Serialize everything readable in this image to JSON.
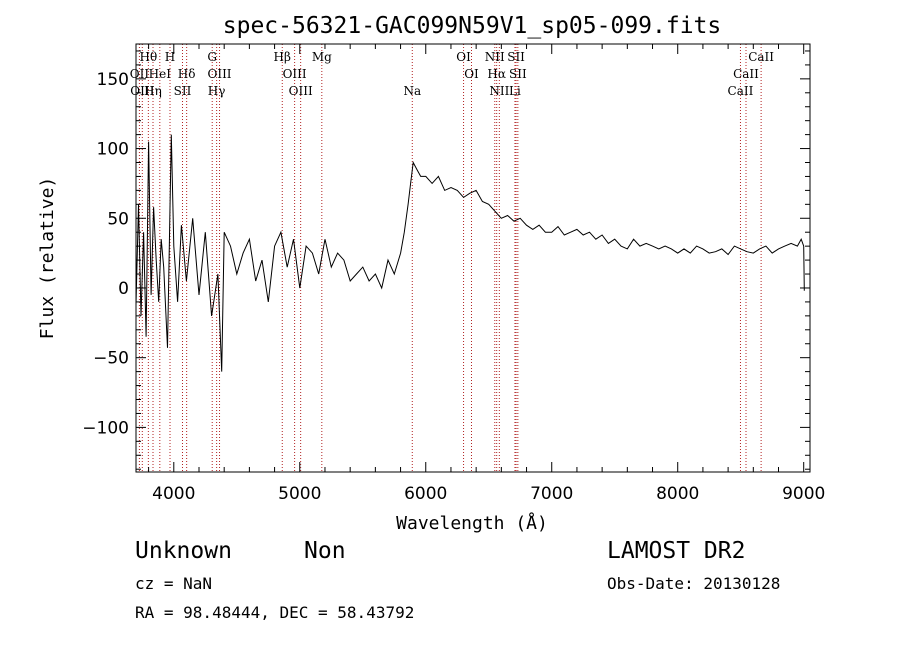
{
  "chart_data": {
    "type": "line",
    "title": "spec-56321-GAC099N59V1_sp05-099.fits",
    "xlabel": "Wavelength (Å)",
    "ylabel": "Flux (relative)",
    "xlim": [
      3700,
      9050
    ],
    "ylim": [
      -132,
      175
    ],
    "xticks": [
      4000,
      5000,
      6000,
      7000,
      8000,
      9000
    ],
    "yticks": [
      -100,
      -50,
      0,
      50,
      100,
      150
    ],
    "grid": false,
    "series": [
      {
        "color": "#000000",
        "x": [
          3700,
          3720,
          3740,
          3760,
          3780,
          3800,
          3820,
          3840,
          3860,
          3880,
          3900,
          3920,
          3950,
          3980,
          4000,
          4030,
          4060,
          4100,
          4150,
          4200,
          4250,
          4300,
          4350,
          4380,
          4400,
          4450,
          4500,
          4550,
          4600,
          4650,
          4700,
          4750,
          4800,
          4850,
          4900,
          4950,
          5000,
          5050,
          5100,
          5150,
          5200,
          5250,
          5300,
          5350,
          5400,
          5450,
          5500,
          5550,
          5600,
          5650,
          5700,
          5750,
          5800,
          5830,
          5860,
          5880,
          5900,
          5930,
          5960,
          6000,
          6050,
          6100,
          6150,
          6200,
          6250,
          6300,
          6350,
          6400,
          6450,
          6500,
          6550,
          6600,
          6650,
          6700,
          6750,
          6800,
          6850,
          6900,
          6950,
          7000,
          7050,
          7100,
          7150,
          7200,
          7250,
          7300,
          7350,
          7400,
          7450,
          7500,
          7550,
          7600,
          7650,
          7700,
          7750,
          7800,
          7850,
          7900,
          7950,
          8000,
          8050,
          8100,
          8150,
          8200,
          8250,
          8300,
          8350,
          8400,
          8450,
          8500,
          8550,
          8600,
          8650,
          8700,
          8750,
          8800,
          8850,
          8900,
          8950,
          8980,
          9000,
          9005
        ],
        "y": [
          -12,
          60,
          -20,
          40,
          -35,
          105,
          -5,
          58,
          20,
          -10,
          35,
          15,
          -43,
          110,
          30,
          -10,
          45,
          5,
          50,
          -5,
          40,
          -20,
          10,
          -60,
          40,
          30,
          10,
          25,
          35,
          5,
          20,
          -10,
          30,
          40,
          15,
          35,
          0,
          30,
          25,
          10,
          35,
          15,
          25,
          20,
          5,
          10,
          15,
          5,
          10,
          0,
          20,
          10,
          25,
          40,
          60,
          75,
          90,
          85,
          80,
          80,
          75,
          80,
          70,
          72,
          70,
          65,
          68,
          70,
          62,
          60,
          55,
          50,
          52,
          48,
          50,
          45,
          42,
          45,
          40,
          40,
          44,
          38,
          40,
          42,
          38,
          40,
          35,
          38,
          32,
          35,
          30,
          28,
          35,
          30,
          32,
          30,
          28,
          30,
          28,
          25,
          28,
          25,
          30,
          28,
          25,
          26,
          28,
          24,
          30,
          28,
          26,
          25,
          28,
          30,
          25,
          28,
          30,
          32,
          30,
          35,
          30,
          -2
        ]
      }
    ],
    "line_markers": [
      {
        "name": "Hθ",
        "wavelength": 3798,
        "row": 0
      },
      {
        "name": "H",
        "wavelength": 3970,
        "row": 0
      },
      {
        "name": "G",
        "wavelength": 4305,
        "row": 0
      },
      {
        "name": "Hβ",
        "wavelength": 4861,
        "row": 0
      },
      {
        "name": "Mg",
        "wavelength": 5175,
        "row": 0
      },
      {
        "name": "OI",
        "wavelength": 6300,
        "row": 0
      },
      {
        "name": "NII",
        "wavelength": 6548,
        "row": 0
      },
      {
        "name": "SII",
        "wavelength": 6717,
        "row": 0
      },
      {
        "name": "CaII",
        "wavelength": 8662,
        "row": 0
      },
      {
        "name": "OII",
        "wavelength": 3727,
        "row": 1
      },
      {
        "name": "HeI",
        "wavelength": 3889,
        "row": 1
      },
      {
        "name": "Hδ",
        "wavelength": 4102,
        "row": 1
      },
      {
        "name": "OIII",
        "wavelength": 4363,
        "row": 1
      },
      {
        "name": "OIII",
        "wavelength": 4959,
        "row": 1
      },
      {
        "name": "OI",
        "wavelength": 6363,
        "row": 1
      },
      {
        "name": "Hα",
        "wavelength": 6563,
        "row": 1
      },
      {
        "name": "SII",
        "wavelength": 6731,
        "row": 1
      },
      {
        "name": "CaII",
        "wavelength": 8542,
        "row": 1
      },
      {
        "name": "OIII",
        "wavelength": 3750,
        "row": 2
      },
      {
        "name": "Hη",
        "wavelength": 3835,
        "row": 2
      },
      {
        "name": "SII",
        "wavelength": 4069,
        "row": 2
      },
      {
        "name": "Hγ",
        "wavelength": 4340,
        "row": 2
      },
      {
        "name": "OIII",
        "wavelength": 5007,
        "row": 2
      },
      {
        "name": "Na",
        "wavelength": 5893,
        "row": 2
      },
      {
        "name": "NII",
        "wavelength": 6584,
        "row": 2
      },
      {
        "name": "Li",
        "wavelength": 6708,
        "row": 2
      },
      {
        "name": "CaII",
        "wavelength": 8498,
        "row": 2
      }
    ]
  },
  "info": {
    "class": "Unknown",
    "subclass": "Non",
    "cz": "cz = NaN",
    "coords": "RA =  98.48444, DEC =  58.43792",
    "survey": "LAMOST DR2",
    "obs_date": "Obs-Date: 20130128"
  }
}
